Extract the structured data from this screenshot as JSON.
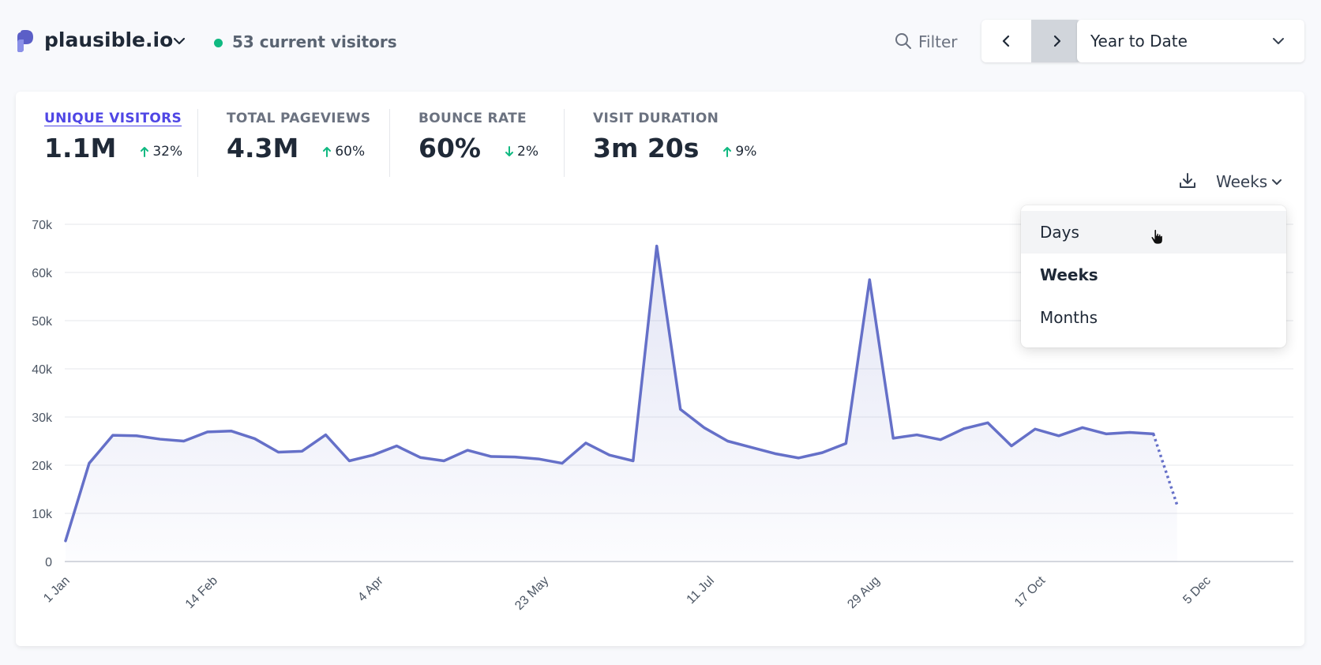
{
  "header": {
    "site_name": "plausible.io",
    "current_visitors": "53 current visitors",
    "filter_label": "Filter",
    "period_label": "Year to Date",
    "icons": {
      "logo": "plausible-logo-icon",
      "site_menu": "chevron-down-icon",
      "filter": "search-icon",
      "prev": "chevron-left-icon",
      "next": "chevron-right-icon"
    }
  },
  "metrics": [
    {
      "label": "UNIQUE VISITORS",
      "value": "1.1M",
      "change": "32%",
      "direction": "up",
      "active": true
    },
    {
      "label": "TOTAL PAGEVIEWS",
      "value": "4.3M",
      "change": "60%",
      "direction": "up",
      "active": false
    },
    {
      "label": "BOUNCE RATE",
      "value": "60%",
      "change": "2%",
      "direction": "down",
      "active": false
    },
    {
      "label": "VISIT DURATION",
      "value": "3m 20s",
      "change": "9%",
      "direction": "up",
      "active": false
    }
  ],
  "interval": {
    "current": "Weeks",
    "options": [
      {
        "label": "Days",
        "hover": true,
        "selected": false
      },
      {
        "label": "Weeks",
        "hover": false,
        "selected": true
      },
      {
        "label": "Months",
        "hover": false,
        "selected": false
      }
    ]
  },
  "colors": {
    "line": "#6570c8",
    "fill": "#eef0fb",
    "live_dot": "#10b981",
    "up_arrow": "#10b981",
    "down_arrow": "#10b981",
    "active_metric": "#4f46e5"
  },
  "chart_data": {
    "type": "line",
    "title": "",
    "xlabel": "",
    "ylabel": "",
    "ylim": [
      0,
      70000
    ],
    "y_ticks": [
      0,
      10000,
      20000,
      30000,
      40000,
      50000,
      60000,
      70000
    ],
    "y_tick_labels": [
      "0",
      "10k",
      "20k",
      "30k",
      "40k",
      "50k",
      "60k",
      "70k"
    ],
    "x_tick_labels": [
      "1 Jan",
      "14 Feb",
      "4 Apr",
      "23 May",
      "11 Jul",
      "29 Aug",
      "17 Oct",
      "5 Dec"
    ],
    "x_tick_weeks": [
      0,
      6.25,
      13.25,
      20.25,
      27.25,
      34.25,
      41.25,
      48.25
    ],
    "series": [
      {
        "name": "Unique visitors",
        "values": [
          4300,
          20400,
          26200,
          26100,
          25400,
          25000,
          26900,
          27100,
          25500,
          22700,
          22900,
          26300,
          20900,
          22100,
          24000,
          21600,
          20900,
          23100,
          21800,
          21700,
          21300,
          20400,
          24600,
          22100,
          20900,
          65500,
          31600,
          27800,
          25000,
          23700,
          22400,
          21500,
          22600,
          24500,
          58500,
          25600,
          26300,
          25300,
          27600,
          28800,
          24000,
          27500,
          26100,
          27800,
          26500,
          26800,
          26500,
          11800
        ],
        "partial_from_index": 46
      }
    ]
  }
}
